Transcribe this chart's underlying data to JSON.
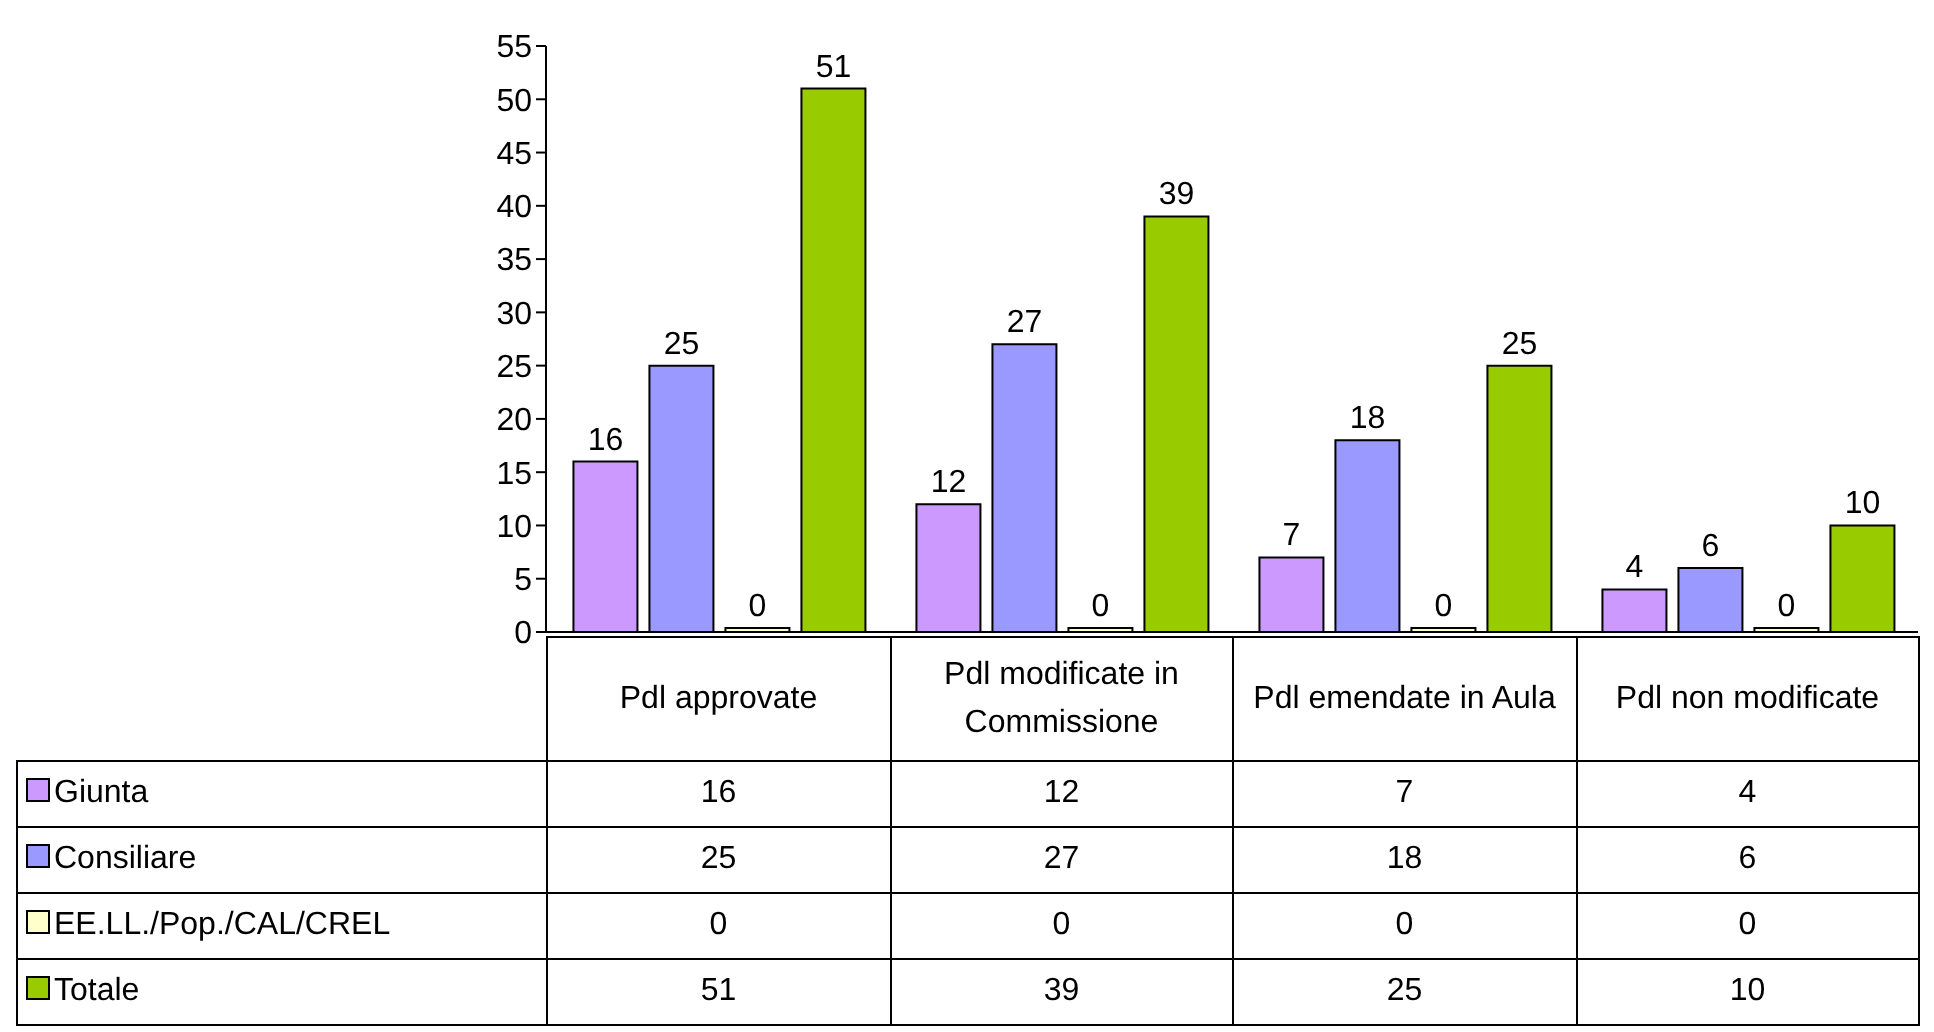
{
  "chart_data": {
    "type": "bar",
    "categories": [
      "Pdl approvate",
      "Pdl modificate in Commissione",
      "Pdl emendate in Aula",
      "Pdl non modificate"
    ],
    "series": [
      {
        "name": "Giunta",
        "color": "#cc99ff",
        "values": [
          16,
          12,
          7,
          4
        ],
        "value_labels": [
          "16",
          "12",
          "7",
          "4"
        ]
      },
      {
        "name": "Consiliare",
        "color": "#9999ff",
        "values": [
          25,
          27,
          18,
          6
        ],
        "value_labels": [
          "25",
          "27",
          "18",
          "6"
        ]
      },
      {
        "name": "EE.LL./Pop./CAL/CREL",
        "color": "#ffffcc",
        "values": [
          0,
          0,
          0,
          0
        ],
        "value_labels": [
          "0",
          "0",
          "0",
          "0"
        ]
      },
      {
        "name": "Totale",
        "color": "#99cc00",
        "values": [
          51,
          39,
          25,
          10
        ],
        "value_labels": [
          "51",
          "39",
          "25",
          "10"
        ]
      }
    ],
    "ylim": [
      0,
      55
    ],
    "yticks": [
      0,
      5,
      10,
      15,
      20,
      25,
      30,
      35,
      40,
      45,
      50,
      55
    ],
    "grid": false,
    "legend": "bottom left"
  }
}
